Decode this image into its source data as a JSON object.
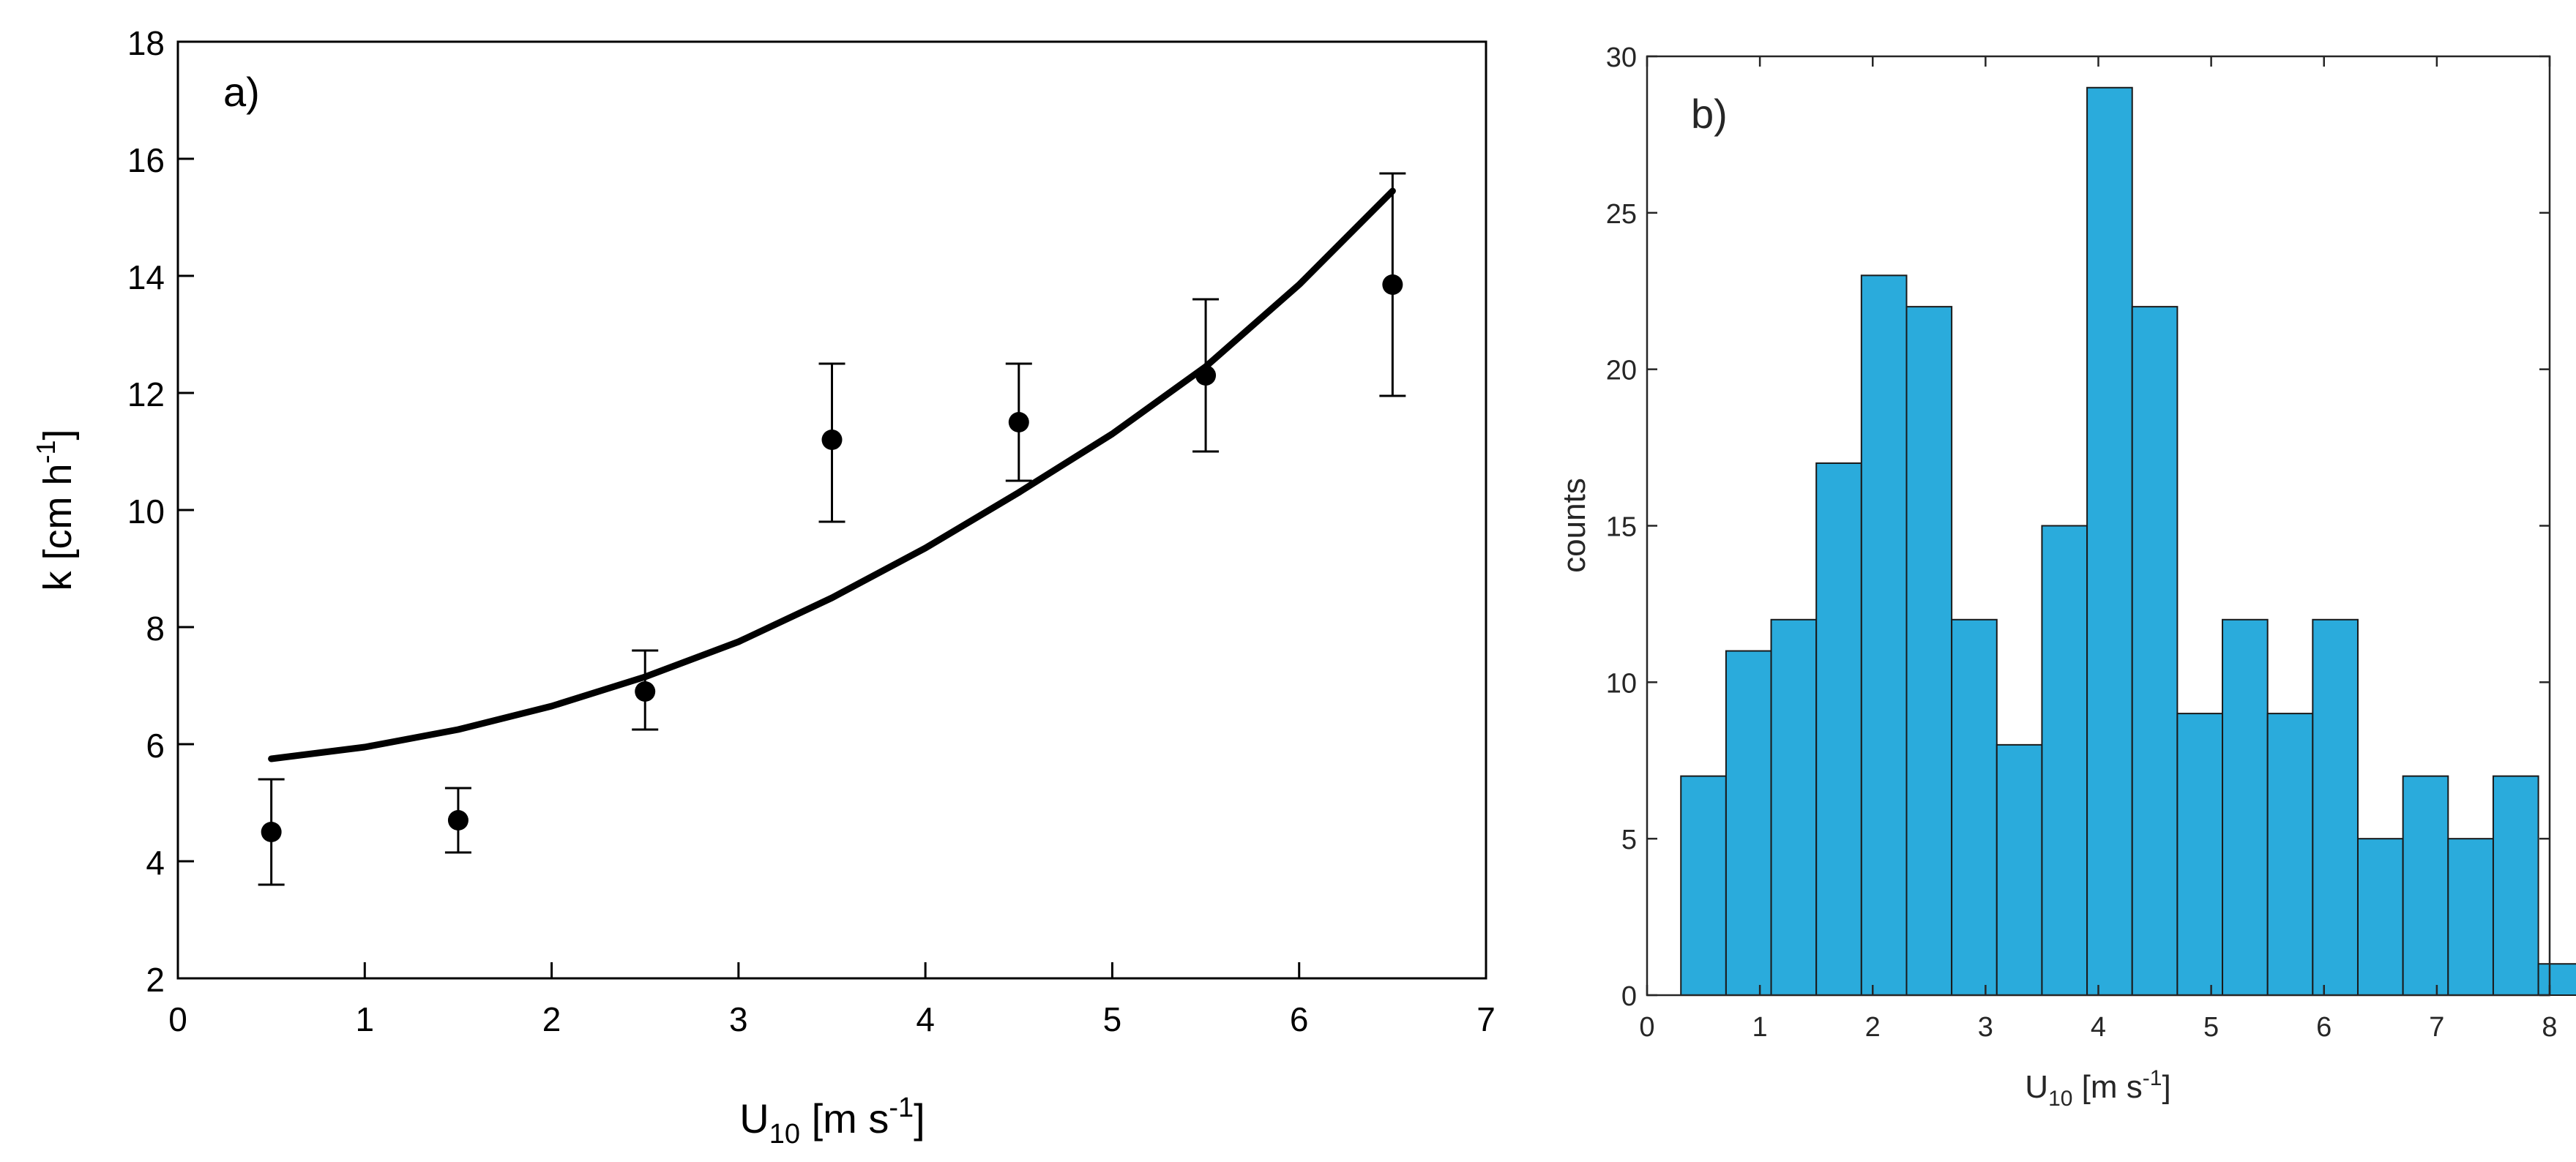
{
  "chart_data": [
    {
      "type": "scatter",
      "panel_label": "a)",
      "x": [
        0.5,
        1.5,
        2.5,
        3.5,
        4.5,
        5.5,
        6.5
      ],
      "y": [
        4.5,
        4.7,
        6.9,
        11.2,
        11.5,
        12.3,
        13.85
      ],
      "y_err_lower": [
        3.6,
        4.15,
        6.25,
        9.8,
        10.5,
        11.0,
        11.95
      ],
      "y_err_upper": [
        5.4,
        5.25,
        7.6,
        12.5,
        12.5,
        13.6,
        15.75
      ],
      "fit": {
        "x": [
          0.5,
          1.0,
          1.5,
          2.0,
          2.5,
          3.0,
          3.5,
          4.0,
          4.5,
          5.0,
          5.5,
          6.0,
          6.5
        ],
        "y": [
          5.75,
          5.95,
          6.25,
          6.65,
          7.15,
          7.75,
          8.5,
          9.35,
          10.3,
          11.3,
          12.45,
          13.85,
          15.45
        ]
      },
      "xlabel": "U",
      "xlabel_sub": "10",
      "xlabel_unit_pre": " [m s",
      "xlabel_unit_sup": "-1",
      "xlabel_unit_post": "]",
      "ylabel": "k [cm h",
      "ylabel_sup": "-1",
      "ylabel_post": "]",
      "xlim": [
        0,
        7
      ],
      "ylim": [
        2,
        18
      ],
      "xticks": [
        0,
        1,
        2,
        3,
        4,
        5,
        6,
        7
      ],
      "yticks": [
        2,
        4,
        6,
        8,
        10,
        12,
        14,
        16,
        18
      ],
      "grid": false
    },
    {
      "type": "bar",
      "subtype": "histogram",
      "panel_label": "b)",
      "bin_start": 0.3,
      "bin_width": 0.4,
      "values": [
        7,
        11,
        12,
        17,
        23,
        22,
        12,
        8,
        15,
        29,
        22,
        9,
        12,
        9,
        12,
        5,
        7,
        5,
        7,
        1
      ],
      "xlabel": "U",
      "xlabel_sub": "10",
      "xlabel_unit_pre": " [m s",
      "xlabel_unit_sup": "-1",
      "xlabel_unit_post": "]",
      "ylabel": "counts",
      "xlim": [
        0,
        8
      ],
      "ylim": [
        0,
        30
      ],
      "xticks": [
        0,
        1,
        2,
        3,
        4,
        5,
        6,
        7,
        8
      ],
      "yticks": [
        0,
        5,
        10,
        15,
        20,
        25,
        30
      ],
      "bar_color": "#2aabdc",
      "grid": false
    }
  ]
}
